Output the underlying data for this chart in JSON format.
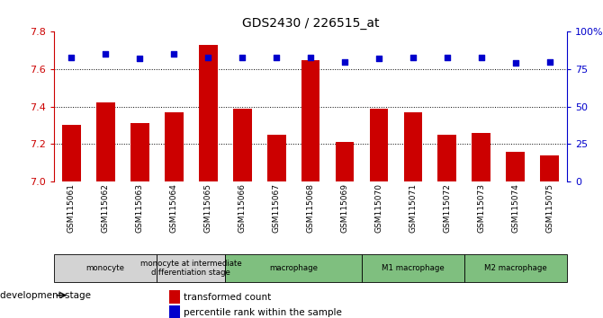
{
  "title": "GDS2430 / 226515_at",
  "samples": [
    "GSM115061",
    "GSM115062",
    "GSM115063",
    "GSM115064",
    "GSM115065",
    "GSM115066",
    "GSM115067",
    "GSM115068",
    "GSM115069",
    "GSM115070",
    "GSM115071",
    "GSM115072",
    "GSM115073",
    "GSM115074",
    "GSM115075"
  ],
  "bar_values": [
    7.3,
    7.42,
    7.31,
    7.37,
    7.73,
    7.39,
    7.25,
    7.65,
    7.21,
    7.39,
    7.37,
    7.25,
    7.26,
    7.16,
    7.14
  ],
  "percentile_values": [
    83,
    85,
    82,
    85,
    83,
    83,
    83,
    83,
    80,
    82,
    83,
    83,
    83,
    79,
    80
  ],
  "bar_color": "#CC0000",
  "dot_color": "#0000CC",
  "ylim_left": [
    7.0,
    7.8
  ],
  "ylim_right": [
    0,
    100
  ],
  "yticks_left": [
    7.0,
    7.2,
    7.4,
    7.6,
    7.8
  ],
  "yticks_right": [
    0,
    25,
    50,
    75,
    100
  ],
  "ytick_labels_right": [
    "0",
    "25",
    "50",
    "75",
    "100%"
  ],
  "grid_lines": [
    7.2,
    7.4,
    7.6
  ],
  "bar_base": 7.0,
  "groups": [
    {
      "label": "monocyte",
      "start": 0,
      "end": 3,
      "color": "#d3d3d3"
    },
    {
      "label": "monocyte at intermediate\ndifferentiation stage",
      "start": 3,
      "end": 5,
      "color": "#d3d3d3"
    },
    {
      "label": "macrophage",
      "start": 5,
      "end": 9,
      "color": "#7FBF7F"
    },
    {
      "label": "M1 macrophage",
      "start": 9,
      "end": 12,
      "color": "#7FBF7F"
    },
    {
      "label": "M2 macrophage",
      "start": 12,
      "end": 15,
      "color": "#7FBF7F"
    }
  ],
  "legend_bar_label": "transformed count",
  "legend_dot_label": "percentile rank within the sample",
  "dev_stage_label": "development stage",
  "background_color": "#ffffff"
}
